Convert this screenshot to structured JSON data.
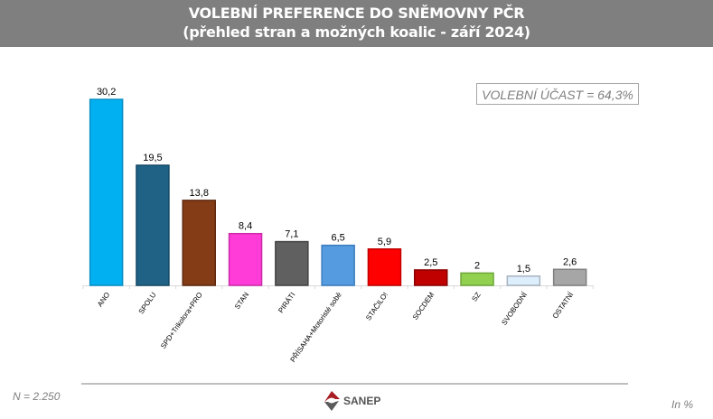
{
  "header": {
    "title": "VOLEBNÍ PREFERENCE DO SNĚMOVNY PČR",
    "subtitle": "(přehled stran a možných koalic - září 2024)"
  },
  "turnout_label": "VOLEBNÍ ÚČAST = 64,3%",
  "footer": {
    "sample": "N = 2.250",
    "unit": "In %",
    "logo_text": "SANEP"
  },
  "chart_data": {
    "type": "bar",
    "title": "VOLEBNÍ PREFERENCE DO SNĚMOVNY PČR",
    "subtitle": "(přehled stran a možných koalic - září 2024)",
    "xlabel": "",
    "ylabel": "",
    "ylim": [
      0,
      32
    ],
    "grid": false,
    "categories": [
      "ANO",
      "SPOLU",
      "SPD+Trikolora+PRO",
      "STAN",
      "PIRÁTI",
      "PŘÍSAHA+Motoristé sobě",
      "STAČILO!",
      "SOCDEM",
      "SZ",
      "SVOBODNÍ",
      "OSTATNÍ"
    ],
    "values": [
      30.2,
      19.5,
      13.8,
      8.4,
      7.1,
      6.5,
      5.9,
      2.5,
      2,
      1.5,
      2.6
    ],
    "value_labels": [
      "30,2",
      "19,5",
      "13,8",
      "8,4",
      "7,1",
      "6,5",
      "5,9",
      "2,5",
      "2",
      "1,5",
      "2,6"
    ],
    "colors": [
      "#00b0f0",
      "#1f6286",
      "#843c17",
      "#ff3cd8",
      "#606060",
      "#559bdf",
      "#ff0000",
      "#c00000",
      "#92d050",
      "#ddeefc",
      "#a6a6a6"
    ],
    "border_colors": [
      "#0a8fc4",
      "#154a66",
      "#5e2a10",
      "#cc2aa9",
      "#444444",
      "#3b7cbf",
      "#c00000",
      "#8a0000",
      "#6ea83a",
      "#a8b4c0",
      "#808080"
    ]
  }
}
